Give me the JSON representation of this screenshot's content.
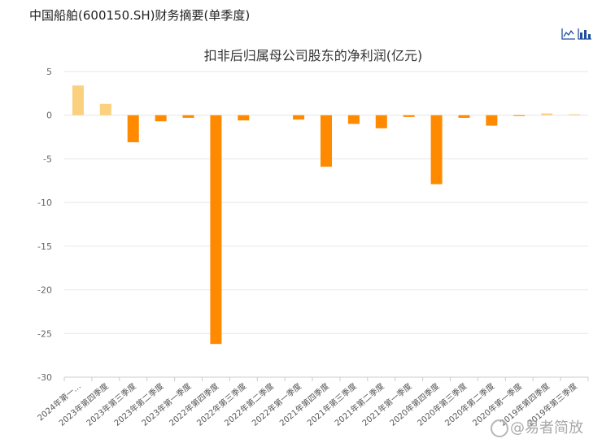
{
  "header": {
    "title": "中国船舶(600150.SH)财务摘要(单季度)"
  },
  "toolbar": {
    "line_icon": "line-chart-icon",
    "bar_icon": "bar-chart-icon"
  },
  "watermark": {
    "text": "@易者简放"
  },
  "colors": {
    "positive_bar": "#fbd07f",
    "negative_bar": "#ff8a00",
    "grid": "#e6e6e6",
    "axis": "#cccccc",
    "toolbar_icon": "#1f4e9e"
  },
  "chart_data": {
    "type": "bar",
    "title": "扣非后归属母公司股东的净利润(亿元)",
    "ylim": [
      -30,
      5
    ],
    "yticks": [
      5,
      0,
      -5,
      -10,
      -15,
      -20,
      -25,
      -30
    ],
    "grid": true,
    "categories": [
      "2024年第一…",
      "2023年第四季度",
      "2023年第三季度",
      "2023年第二季度",
      "2023年第一季度",
      "2022年第四季度",
      "2022年第三季度",
      "2022年第二季度",
      "2022年第一季度",
      "2021年第四季度",
      "2021年第三季度",
      "2021年第二季度",
      "2021年第一季度",
      "2020年第四季度",
      "2020年第三季度",
      "2020年第二季度",
      "2020年第一季度",
      "2019年第四季度",
      "2019年第三季度"
    ],
    "values": [
      3.4,
      1.3,
      -3.1,
      -0.7,
      -0.3,
      -26.2,
      -0.6,
      0.0,
      -0.5,
      -5.9,
      -1.0,
      -1.5,
      -0.2,
      -7.9,
      -0.3,
      -1.2,
      -0.1,
      0.2,
      0.1
    ]
  }
}
